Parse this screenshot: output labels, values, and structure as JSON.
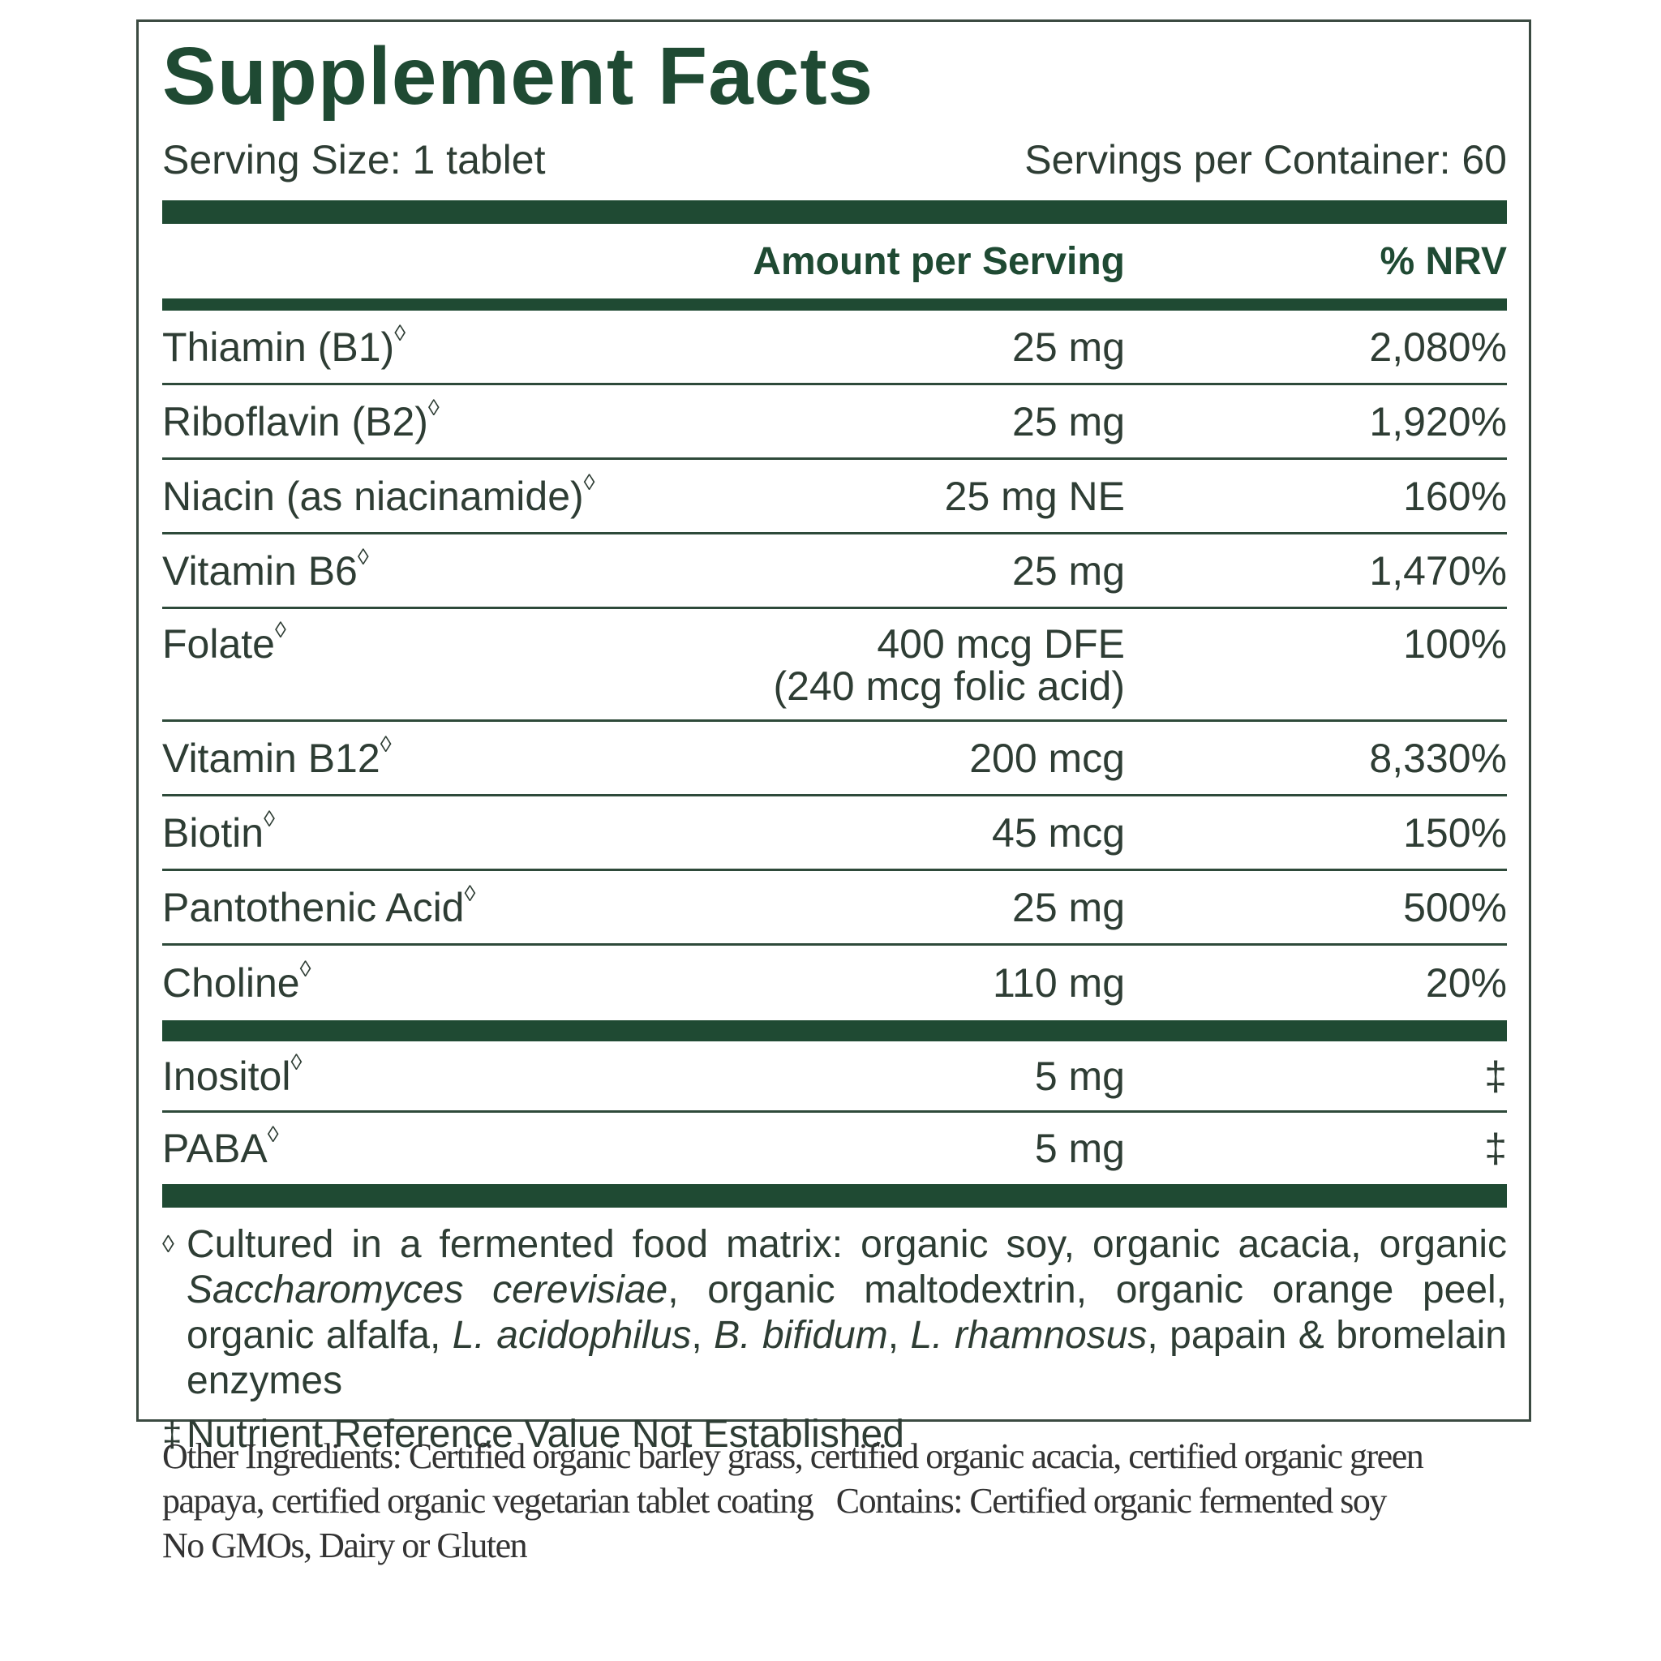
{
  "header": {
    "title": "Supplement Facts",
    "serving_size": "Serving Size: 1 tablet",
    "servings_per_container": "Servings per Container: 60"
  },
  "table": {
    "columns": [
      "Amount per Serving",
      "% NRV"
    ],
    "groups": [
      [
        {
          "name": "Thiamin (B1)",
          "sup": "◊",
          "amount": "25 mg",
          "nrv": "2,080%"
        },
        {
          "name": "Riboflavin (B2)",
          "sup": "◊",
          "amount": "25 mg",
          "nrv": "1,920%"
        },
        {
          "name": "Niacin (as niacinamide)",
          "sup": "◊",
          "amount": "25 mg NE",
          "nrv": "160%"
        },
        {
          "name": "Vitamin B6",
          "sup": "◊",
          "amount": "25 mg",
          "nrv": "1,470%"
        },
        {
          "name": "Folate",
          "sup": "◊",
          "amount": "400 mcg DFE",
          "amount_detail": "(240 mcg folic acid)",
          "nrv": "100%"
        },
        {
          "name": "Vitamin B12",
          "sup": "◊",
          "amount": "200 mcg",
          "nrv": "8,330%"
        },
        {
          "name": "Biotin",
          "sup": "◊",
          "amount": "45 mcg",
          "nrv": "150%"
        },
        {
          "name": "Pantothenic Acid",
          "sup": "◊",
          "amount": "25 mg",
          "nrv": "500%"
        },
        {
          "name": "Choline",
          "sup": "◊",
          "amount": "110 mg",
          "nrv": "20%"
        }
      ],
      [
        {
          "name": "Inositol",
          "sup": "◊",
          "amount": "5 mg",
          "nrv": "‡"
        },
        {
          "name": "PABA",
          "sup": "◊",
          "amount": "5 mg",
          "nrv": "‡"
        }
      ]
    ]
  },
  "footnotes": [
    {
      "symbol": "◊",
      "segments": [
        {
          "text": "Cultured in a fermented food matrix: organic soy, organic acacia, organic "
        },
        {
          "text": "Saccharomyces cerevisiae",
          "italic": true
        },
        {
          "text": ", organic maltodextrin, organic orange peel, organic alfalfa, "
        },
        {
          "text": "L. acidophilus",
          "italic": true
        },
        {
          "text": ", "
        },
        {
          "text": "B. bifidum",
          "italic": true
        },
        {
          "text": ", "
        },
        {
          "text": "L. rhamnosus",
          "italic": true
        },
        {
          "text": ", papain & bromelain enzymes"
        }
      ]
    },
    {
      "symbol": "‡",
      "segments": [
        {
          "text": "Nutrient Reference Value Not Established"
        }
      ]
    }
  ],
  "other_ingredients": [
    "Other Ingredients: Certified organic barley grass, certified organic acacia, certified organic green",
    "papaya, certified organic vegetarian tablet coating   Contains: Certified organic fermented soy",
    "No GMOs, Dairy or Gluten"
  ]
}
